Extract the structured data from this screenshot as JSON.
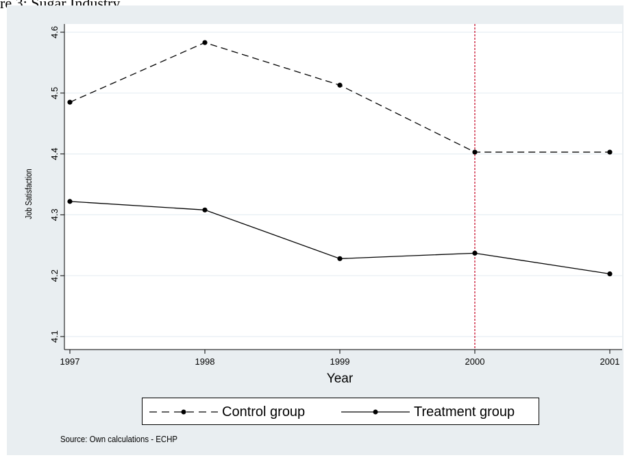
{
  "figure_label": "re 3: Sugar Industry",
  "source_note": "Source: Own calculations - ECHP",
  "chart_data": {
    "type": "line",
    "title": "",
    "xlabel": "Year",
    "ylabel": "Job Satisfaction",
    "categories": [
      "1997",
      "1998",
      "1999",
      "2000",
      "2001"
    ],
    "y_tick_labels": [
      "4.1",
      "4.2",
      "4.3",
      "4.4",
      "4.5",
      "4.6"
    ],
    "ylim": [
      4.1,
      4.6
    ],
    "grid": true,
    "legend_position": "bottom",
    "reference_line": {
      "x": "2000",
      "color": "#c8102e",
      "style": "dotted"
    },
    "series": [
      {
        "name": "Control group",
        "style": "dashed",
        "color": "#000000",
        "values": [
          4.485,
          4.583,
          4.513,
          4.403,
          4.403
        ]
      },
      {
        "name": "Treatment group",
        "style": "solid",
        "color": "#000000",
        "values": [
          4.322,
          4.308,
          4.228,
          4.237,
          4.203
        ]
      }
    ]
  }
}
